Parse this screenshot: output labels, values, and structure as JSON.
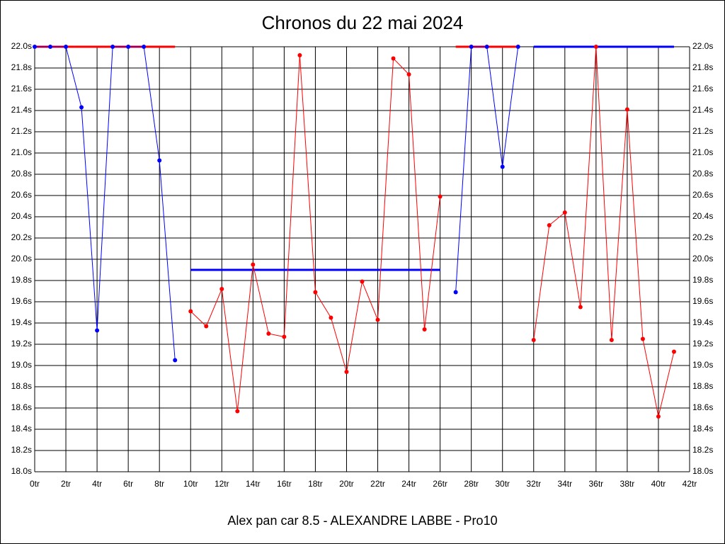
{
  "chart_data": {
    "type": "line",
    "title": "Chronos du 22 mai 2024",
    "subtitle": "Alex pan car 8.5 - ALEXANDRE LABBE - Pro10",
    "xlim": [
      0,
      42
    ],
    "ylim": [
      18,
      22
    ],
    "grid": true,
    "xticks": [
      {
        "value": 0,
        "label": "0tr"
      },
      {
        "value": 2,
        "label": "2tr"
      },
      {
        "value": 4,
        "label": "4tr"
      },
      {
        "value": 6,
        "label": "6tr"
      },
      {
        "value": 8,
        "label": "8tr"
      },
      {
        "value": 10,
        "label": "10tr"
      },
      {
        "value": 12,
        "label": "12tr"
      },
      {
        "value": 14,
        "label": "14tr"
      },
      {
        "value": 16,
        "label": "16tr"
      },
      {
        "value": 18,
        "label": "18tr"
      },
      {
        "value": 20,
        "label": "20tr"
      },
      {
        "value": 22,
        "label": "22tr"
      },
      {
        "value": 24,
        "label": "24tr"
      },
      {
        "value": 26,
        "label": "26tr"
      },
      {
        "value": 28,
        "label": "28tr"
      },
      {
        "value": 30,
        "label": "30tr"
      },
      {
        "value": 32,
        "label": "32tr"
      },
      {
        "value": 34,
        "label": "34tr"
      },
      {
        "value": 36,
        "label": "36tr"
      },
      {
        "value": 38,
        "label": "38tr"
      },
      {
        "value": 40,
        "label": "40tr"
      },
      {
        "value": 42,
        "label": "42tr"
      }
    ],
    "yticks": [
      {
        "value": 18,
        "label": "18.0s"
      },
      {
        "value": 18.2,
        "label": "18.2s"
      },
      {
        "value": 18.4,
        "label": "18.4s"
      },
      {
        "value": 18.6,
        "label": "18.6s"
      },
      {
        "value": 18.8,
        "label": "18.8s"
      },
      {
        "value": 19,
        "label": "19.0s"
      },
      {
        "value": 19.2,
        "label": "19.2s"
      },
      {
        "value": 19.4,
        "label": "19.4s"
      },
      {
        "value": 19.6,
        "label": "19.6s"
      },
      {
        "value": 19.8,
        "label": "19.8s"
      },
      {
        "value": 20,
        "label": "20.0s"
      },
      {
        "value": 20.2,
        "label": "20.2s"
      },
      {
        "value": 20.4,
        "label": "20.4s"
      },
      {
        "value": 20.6,
        "label": "20.6s"
      },
      {
        "value": 20.8,
        "label": "20.8s"
      },
      {
        "value": 21,
        "label": "21.0s"
      },
      {
        "value": 21.2,
        "label": "21.2s"
      },
      {
        "value": 21.4,
        "label": "21.4s"
      },
      {
        "value": 21.6,
        "label": "21.6s"
      },
      {
        "value": 21.8,
        "label": "21.8s"
      },
      {
        "value": 22,
        "label": "22.0s"
      }
    ],
    "series": [
      {
        "color": "#ff0000",
        "markers": false,
        "width": 3,
        "x": [
          0,
          9
        ],
        "values": [
          22,
          22
        ]
      },
      {
        "color": "#0000ff",
        "markers": false,
        "width": 3,
        "x": [
          10,
          26
        ],
        "values": [
          19.9,
          19.9
        ]
      },
      {
        "color": "#ff0000",
        "markers": false,
        "width": 3,
        "x": [
          27,
          31
        ],
        "values": [
          22,
          22
        ]
      },
      {
        "color": "#0000ff",
        "markers": false,
        "width": 3,
        "x": [
          32,
          41
        ],
        "values": [
          22,
          22
        ]
      },
      {
        "color": "#0000ff",
        "markers": true,
        "width": 1,
        "x": [
          0,
          1,
          2,
          3,
          4,
          5,
          6,
          7,
          8,
          9
        ],
        "values": [
          22,
          22,
          22,
          21.43,
          19.33,
          22,
          22,
          22,
          20.93,
          19.05
        ]
      },
      {
        "color": "#ff0000",
        "markers": true,
        "width": 1,
        "x": [
          10,
          11,
          12,
          13,
          14,
          15,
          16,
          17,
          18,
          19,
          20,
          21,
          22,
          23,
          24,
          25,
          26
        ],
        "values": [
          19.51,
          19.37,
          19.72,
          18.57,
          19.95,
          19.3,
          19.27,
          21.92,
          19.69,
          19.45,
          18.94,
          19.79,
          19.43,
          21.89,
          21.74,
          19.34,
          20.59
        ]
      },
      {
        "color": "#0000ff",
        "markers": true,
        "width": 1,
        "x": [
          27,
          28,
          29,
          30,
          31
        ],
        "values": [
          19.69,
          22,
          22,
          20.87,
          22
        ]
      },
      {
        "color": "#ff0000",
        "markers": true,
        "width": 1,
        "x": [
          32,
          33,
          34,
          35,
          36,
          37,
          38,
          39,
          40,
          41
        ],
        "values": [
          19.24,
          20.32,
          20.44,
          19.55,
          22,
          19.24,
          21.41,
          19.25,
          18.52,
          19.13
        ]
      }
    ]
  }
}
